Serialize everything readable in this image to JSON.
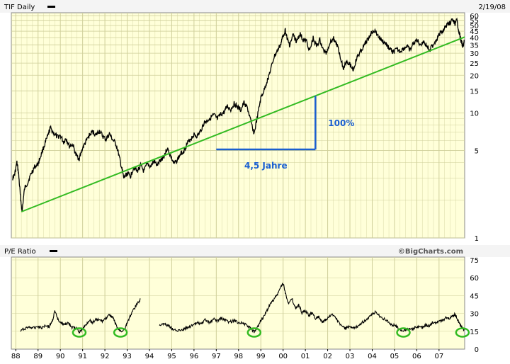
{
  "header": {
    "ticker_label": "TIF Daily",
    "date": "2/19/08"
  },
  "lower_panel": {
    "label": "P/E Ratio",
    "credit": "©BigCharts.com"
  },
  "annotations": {
    "gain": "100%",
    "duration": "4,5 Jahre"
  },
  "colors": {
    "plot_bg": "#ffffd9",
    "grid": "#cfcf9a",
    "price": "#000000",
    "trendline": "#33bb22",
    "annotation": "#1a5fd0",
    "circle": "#33bb22",
    "header_bar": "#f4f4f4"
  },
  "chart_data": [
    {
      "type": "line",
      "name": "price",
      "y_scale": "log",
      "ylim": [
        1,
        60
      ],
      "y_ticks": [
        1,
        5,
        10,
        15,
        20,
        25,
        30,
        35,
        40,
        45,
        50,
        55,
        60
      ],
      "x_ticks": [
        "88",
        "89",
        "90",
        "91",
        "92",
        "93",
        "94",
        "95",
        "96",
        "97",
        "98",
        "99",
        "00",
        "01",
        "02",
        "03",
        "04",
        "05",
        "06",
        "07"
      ],
      "xlim": [
        1987.8,
        2008.15
      ],
      "grid": true,
      "points": [
        [
          1987.85,
          3.0
        ],
        [
          1987.95,
          3.2
        ],
        [
          1988.05,
          4.0
        ],
        [
          1988.12,
          3.3
        ],
        [
          1988.2,
          2.2
        ],
        [
          1988.28,
          1.6
        ],
        [
          1988.4,
          2.5
        ],
        [
          1988.55,
          2.8
        ],
        [
          1988.7,
          3.3
        ],
        [
          1988.85,
          3.7
        ],
        [
          1989.0,
          3.9
        ],
        [
          1989.15,
          4.7
        ],
        [
          1989.3,
          5.6
        ],
        [
          1989.45,
          6.6
        ],
        [
          1989.55,
          7.6
        ],
        [
          1989.7,
          6.9
        ],
        [
          1989.85,
          6.4
        ],
        [
          1990.0,
          6.6
        ],
        [
          1990.15,
          5.8
        ],
        [
          1990.25,
          6.3
        ],
        [
          1990.4,
          5.4
        ],
        [
          1990.55,
          5.6
        ],
        [
          1990.7,
          4.6
        ],
        [
          1990.85,
          4.3
        ],
        [
          1991.0,
          5.2
        ],
        [
          1991.15,
          5.9
        ],
        [
          1991.3,
          6.6
        ],
        [
          1991.45,
          7.1
        ],
        [
          1991.6,
          6.6
        ],
        [
          1991.75,
          7.2
        ],
        [
          1991.9,
          6.5
        ],
        [
          1992.05,
          6.1
        ],
        [
          1992.2,
          6.8
        ],
        [
          1992.35,
          6.1
        ],
        [
          1992.5,
          5.6
        ],
        [
          1992.65,
          4.4
        ],
        [
          1992.75,
          3.6
        ],
        [
          1992.85,
          3.0
        ],
        [
          1993.0,
          3.3
        ],
        [
          1993.15,
          3.1
        ],
        [
          1993.3,
          3.7
        ],
        [
          1993.45,
          3.4
        ],
        [
          1993.6,
          3.8
        ],
        [
          1993.75,
          3.4
        ],
        [
          1993.9,
          3.9
        ],
        [
          1994.05,
          3.7
        ],
        [
          1994.2,
          4.1
        ],
        [
          1994.35,
          3.8
        ],
        [
          1994.5,
          4.2
        ],
        [
          1994.65,
          4.5
        ],
        [
          1994.8,
          5.2
        ],
        [
          1994.95,
          4.5
        ],
        [
          1995.1,
          3.9
        ],
        [
          1995.25,
          4.2
        ],
        [
          1995.4,
          4.7
        ],
        [
          1995.55,
          5.0
        ],
        [
          1995.7,
          5.7
        ],
        [
          1995.85,
          6.2
        ],
        [
          1996.0,
          6.7
        ],
        [
          1996.15,
          6.5
        ],
        [
          1996.3,
          7.2
        ],
        [
          1996.45,
          8.3
        ],
        [
          1996.6,
          8.7
        ],
        [
          1996.75,
          9.2
        ],
        [
          1996.9,
          9.6
        ],
        [
          1997.05,
          8.9
        ],
        [
          1997.2,
          9.7
        ],
        [
          1997.35,
          10.1
        ],
        [
          1997.5,
          11.3
        ],
        [
          1997.65,
          10.6
        ],
        [
          1997.8,
          11.9
        ],
        [
          1997.95,
          11.1
        ],
        [
          1998.1,
          10.5
        ],
        [
          1998.25,
          12.1
        ],
        [
          1998.4,
          10.9
        ],
        [
          1998.55,
          8.5
        ],
        [
          1998.7,
          6.8
        ],
        [
          1998.85,
          9.3
        ],
        [
          1999.0,
          13.1
        ],
        [
          1999.15,
          15.2
        ],
        [
          1999.3,
          18.4
        ],
        [
          1999.45,
          22.3
        ],
        [
          1999.6,
          28.1
        ],
        [
          1999.75,
          31.5
        ],
        [
          1999.9,
          35.6
        ],
        [
          2000.0,
          41.5
        ],
        [
          2000.1,
          45.8
        ],
        [
          2000.2,
          38.3
        ],
        [
          2000.3,
          34.6
        ],
        [
          2000.45,
          42.3
        ],
        [
          2000.6,
          36.8
        ],
        [
          2000.75,
          43.1
        ],
        [
          2000.9,
          38.1
        ],
        [
          2001.05,
          37.3
        ],
        [
          2001.2,
          31.2
        ],
        [
          2001.35,
          39.6
        ],
        [
          2001.5,
          34.1
        ],
        [
          2001.65,
          38.2
        ],
        [
          2001.8,
          31.6
        ],
        [
          2001.95,
          30.4
        ],
        [
          2002.1,
          36.5
        ],
        [
          2002.25,
          39.7
        ],
        [
          2002.4,
          35.6
        ],
        [
          2002.55,
          29.1
        ],
        [
          2002.7,
          22.6
        ],
        [
          2002.85,
          26.3
        ],
        [
          2003.0,
          24.4
        ],
        [
          2003.15,
          22.1
        ],
        [
          2003.3,
          27.1
        ],
        [
          2003.45,
          30.5
        ],
        [
          2003.6,
          33.6
        ],
        [
          2003.75,
          37.2
        ],
        [
          2003.9,
          41.6
        ],
        [
          2004.05,
          46.2
        ],
        [
          2004.2,
          43.1
        ],
        [
          2004.35,
          39.2
        ],
        [
          2004.5,
          37.0
        ],
        [
          2004.65,
          35.1
        ],
        [
          2004.8,
          32.1
        ],
        [
          2004.95,
          30.6
        ],
        [
          2005.1,
          32.0
        ],
        [
          2005.25,
          31.1
        ],
        [
          2005.4,
          32.6
        ],
        [
          2005.55,
          34.1
        ],
        [
          2005.7,
          31.3
        ],
        [
          2005.85,
          36.1
        ],
        [
          2006.0,
          38.3
        ],
        [
          2006.15,
          35.4
        ],
        [
          2006.3,
          37.2
        ],
        [
          2006.45,
          34.1
        ],
        [
          2006.6,
          32.2
        ],
        [
          2006.75,
          35.3
        ],
        [
          2006.9,
          39.3
        ],
        [
          2007.05,
          43.1
        ],
        [
          2007.2,
          46.1
        ],
        [
          2007.35,
          50.2
        ],
        [
          2007.5,
          53.1
        ],
        [
          2007.6,
          55.5
        ],
        [
          2007.7,
          51.2
        ],
        [
          2007.8,
          54.4
        ],
        [
          2007.88,
          46.0
        ],
        [
          2007.95,
          40.1
        ],
        [
          2008.02,
          36.3
        ],
        [
          2008.08,
          33.6
        ],
        [
          2008.13,
          38.1
        ]
      ],
      "trendline": [
        [
          1988.25,
          1.62
        ],
        [
          2008.15,
          40.4
        ]
      ]
    },
    {
      "type": "line",
      "name": "pe_ratio",
      "ylim": [
        0,
        75
      ],
      "y_ticks": [
        0,
        15,
        30,
        45,
        60,
        75
      ],
      "xlim": [
        1987.8,
        2008.15
      ],
      "grid": false,
      "segments": [
        [
          [
            1988.2,
            15.1
          ],
          [
            1988.4,
            17.3
          ],
          [
            1988.6,
            18.6
          ],
          [
            1988.8,
            17.6
          ],
          [
            1989.0,
            19.4
          ],
          [
            1989.15,
            17.9
          ],
          [
            1989.35,
            20.2
          ],
          [
            1989.5,
            18.7
          ],
          [
            1989.65,
            24.3
          ],
          [
            1989.75,
            31.6
          ],
          [
            1989.9,
            24.6
          ],
          [
            1990.05,
            22.4
          ],
          [
            1990.2,
            20.1
          ],
          [
            1990.35,
            22.6
          ],
          [
            1990.5,
            18.3
          ],
          [
            1990.7,
            17.5
          ],
          [
            1990.85,
            14.2
          ],
          [
            1991.0,
            17.1
          ],
          [
            1991.15,
            20.4
          ],
          [
            1991.3,
            24.6
          ],
          [
            1991.45,
            22.3
          ],
          [
            1991.6,
            25.1
          ],
          [
            1991.75,
            24.3
          ],
          [
            1991.9,
            23.6
          ],
          [
            1992.05,
            26.2
          ],
          [
            1992.2,
            28.4
          ],
          [
            1992.35,
            27.1
          ],
          [
            1992.45,
            22.3
          ],
          [
            1992.6,
            16.4
          ],
          [
            1992.75,
            15.1
          ],
          [
            1992.9,
            17.3
          ],
          [
            1993.0,
            22.2
          ],
          [
            1993.15,
            28.6
          ],
          [
            1993.3,
            33.4
          ],
          [
            1993.45,
            38.1
          ],
          [
            1993.6,
            42.2
          ]
        ],
        [
          [
            1994.45,
            20.3
          ],
          [
            1994.6,
            21.4
          ],
          [
            1994.75,
            20.6
          ],
          [
            1994.9,
            19.3
          ],
          [
            1995.05,
            16.6
          ],
          [
            1995.25,
            15.2
          ],
          [
            1995.45,
            16.3
          ],
          [
            1995.6,
            17.4
          ],
          [
            1995.8,
            19.1
          ],
          [
            1996.0,
            20.2
          ],
          [
            1996.15,
            22.4
          ],
          [
            1996.35,
            21.3
          ],
          [
            1996.5,
            24.4
          ],
          [
            1996.7,
            22.2
          ],
          [
            1996.9,
            25.3
          ],
          [
            1997.05,
            23.6
          ],
          [
            1997.2,
            26.1
          ],
          [
            1997.4,
            24.3
          ],
          [
            1997.6,
            22.7
          ],
          [
            1997.8,
            24.2
          ],
          [
            1998.0,
            22.4
          ],
          [
            1998.2,
            21.8
          ],
          [
            1998.4,
            19.4
          ],
          [
            1998.55,
            17.3
          ],
          [
            1998.7,
            14.3
          ],
          [
            1998.85,
            18.2
          ],
          [
            1999.0,
            24.4
          ],
          [
            1999.15,
            27.3
          ],
          [
            1999.3,
            33.5
          ],
          [
            1999.45,
            38.6
          ],
          [
            1999.6,
            42.3
          ],
          [
            1999.75,
            46.1
          ],
          [
            1999.9,
            52.4
          ],
          [
            2000.0,
            55.6
          ],
          [
            2000.1,
            47.3
          ],
          [
            2000.25,
            38.4
          ],
          [
            2000.4,
            42.2
          ],
          [
            2000.55,
            34.1
          ],
          [
            2000.7,
            37.3
          ],
          [
            2000.85,
            30.2
          ],
          [
            2001.0,
            32.1
          ],
          [
            2001.15,
            28.4
          ],
          [
            2001.3,
            30.6
          ],
          [
            2001.45,
            26.1
          ],
          [
            2001.6,
            27.4
          ],
          [
            2001.75,
            22.5
          ],
          [
            2001.9,
            24.3
          ],
          [
            2002.05,
            26.7
          ],
          [
            2002.2,
            29.1
          ],
          [
            2002.35,
            27.3
          ],
          [
            2002.5,
            22.2
          ],
          [
            2002.65,
            19.1
          ],
          [
            2002.8,
            17.4
          ],
          [
            2002.95,
            18.6
          ],
          [
            2003.1,
            17.3
          ],
          [
            2003.25,
            18.4
          ],
          [
            2003.4,
            20.2
          ],
          [
            2003.55,
            22.4
          ],
          [
            2003.7,
            24.3
          ],
          [
            2003.85,
            26.2
          ],
          [
            2004.0,
            29.3
          ],
          [
            2004.15,
            31.2
          ],
          [
            2004.3,
            28.4
          ],
          [
            2004.45,
            26.2
          ],
          [
            2004.6,
            24.5
          ],
          [
            2004.75,
            22.1
          ],
          [
            2004.9,
            20.3
          ],
          [
            2005.05,
            19.6
          ],
          [
            2005.2,
            17.2
          ],
          [
            2005.35,
            15.3
          ],
          [
            2005.5,
            16.2
          ],
          [
            2005.65,
            17.6
          ],
          [
            2005.8,
            16.4
          ],
          [
            2005.95,
            18.3
          ],
          [
            2006.1,
            19.2
          ],
          [
            2006.25,
            18.1
          ],
          [
            2006.4,
            20.3
          ],
          [
            2006.55,
            19.4
          ],
          [
            2006.7,
            22.2
          ],
          [
            2006.85,
            21.6
          ],
          [
            2007.0,
            24.3
          ],
          [
            2007.15,
            23.5
          ],
          [
            2007.3,
            26.1
          ],
          [
            2007.45,
            25.4
          ],
          [
            2007.6,
            27.6
          ],
          [
            2007.7,
            29.3
          ],
          [
            2007.8,
            26.4
          ],
          [
            2007.9,
            22.1
          ],
          [
            2008.0,
            18.3
          ],
          [
            2008.1,
            16.2
          ],
          [
            2008.13,
            17.2
          ]
        ]
      ],
      "circled_lows": [
        1990.85,
        1992.7,
        1998.7,
        2005.4,
        2008.05
      ]
    }
  ]
}
